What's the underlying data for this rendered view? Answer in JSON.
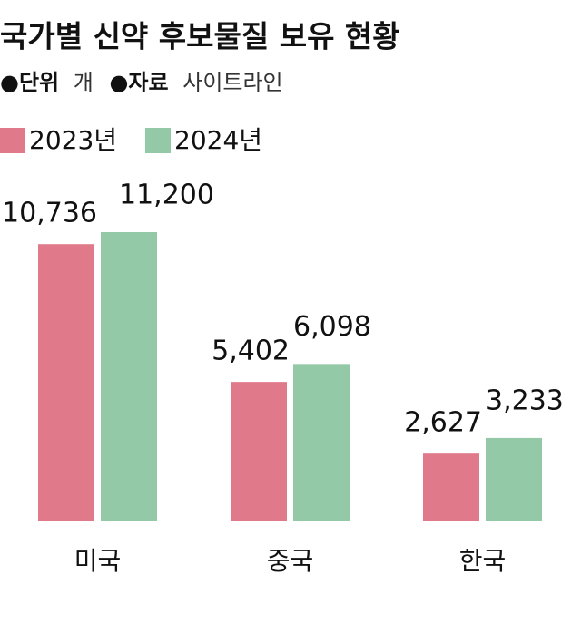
{
  "chart_data": {
    "type": "bar",
    "title": "국가별 신약 후보물질 보유 현황",
    "unit_label": "●단위",
    "unit": "개",
    "source_label": "●자료",
    "source": "사이트라인",
    "categories": [
      "미국",
      "중국",
      "한국"
    ],
    "series": [
      {
        "name": "2023년",
        "color": "#e07a8a",
        "values": [
          10736,
          5402,
          2627
        ],
        "value_labels": [
          "10,736",
          "5,402",
          "2,627"
        ]
      },
      {
        "name": "2024년",
        "color": "#94c9a8",
        "values": [
          11200,
          6098,
          3233
        ],
        "value_labels": [
          "11,200",
          "6,098",
          "3,233"
        ]
      }
    ]
  }
}
